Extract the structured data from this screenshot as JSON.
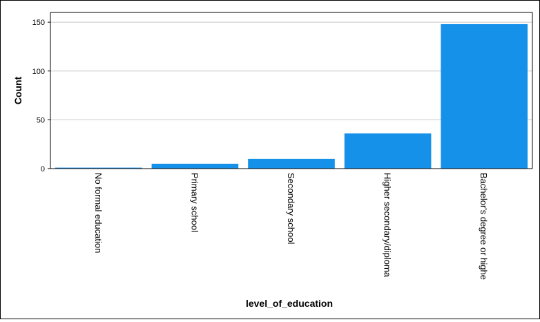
{
  "chart_data": {
    "type": "bar",
    "categories": [
      "No formal education",
      "Primary school",
      "Secondary school",
      "Higher secondary/diploma",
      "Bachelor's degree or highe"
    ],
    "values": [
      1,
      5,
      10,
      36,
      148
    ],
    "xlabel": "level_of_education",
    "ylabel": "Count",
    "ylim": [
      0,
      160
    ],
    "yticks": [
      0,
      50,
      100,
      150
    ],
    "grid": true,
    "bar_color": "#1591ea",
    "grid_color": "#c8c8c8"
  }
}
